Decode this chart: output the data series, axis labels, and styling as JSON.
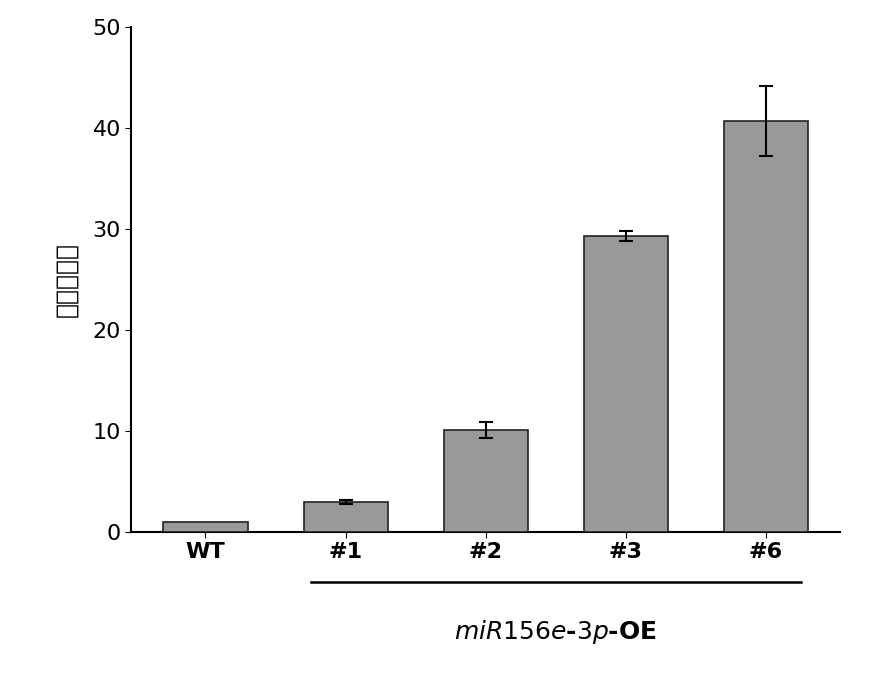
{
  "categories": [
    "WT",
    "#1",
    "#2",
    "#3",
    "#6"
  ],
  "values": [
    1.0,
    3.0,
    10.1,
    29.3,
    40.7
  ],
  "errors": [
    0.0,
    0.2,
    0.8,
    0.5,
    3.5
  ],
  "bar_color": "#999999",
  "bar_edgecolor": "#222222",
  "ylim": [
    0,
    50
  ],
  "yticks": [
    0,
    10,
    20,
    30,
    40,
    50
  ],
  "ylabel": "基因表达量",
  "ylabel_fontsize": 18,
  "tick_fontsize": 16,
  "xlabel_main_fontsize": 18,
  "bar_width": 0.6,
  "figure_width": 8.75,
  "figure_height": 6.82,
  "dpi": 100,
  "background_color": "#ffffff"
}
